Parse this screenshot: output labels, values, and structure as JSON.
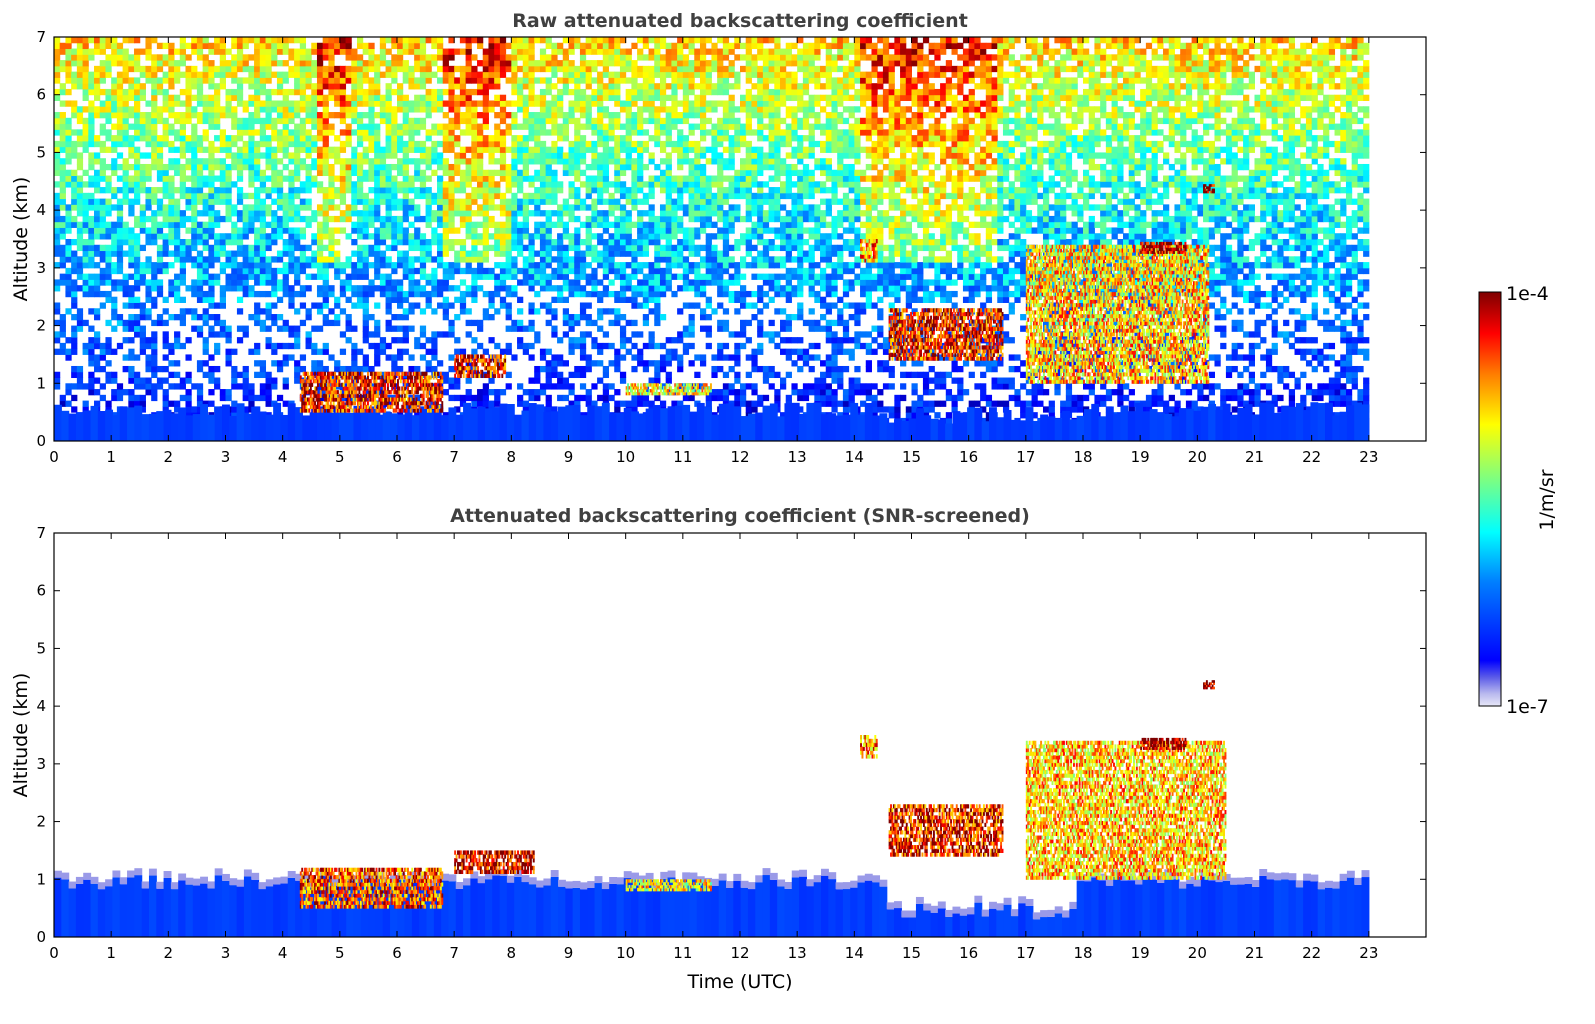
{
  "chart_data": [
    {
      "type": "heatmap",
      "title": "Raw attenuated backscattering coefficient",
      "xlabel": "",
      "ylabel": "Altitude (km)",
      "xlim": [
        0,
        24
      ],
      "ylim": [
        0,
        7
      ],
      "xticks": [
        "0",
        "1",
        "2",
        "3",
        "4",
        "5",
        "6",
        "7",
        "8",
        "9",
        "10",
        "11",
        "12",
        "13",
        "14",
        "15",
        "16",
        "17",
        "18",
        "19",
        "20",
        "21",
        "22",
        "23"
      ],
      "yticks": [
        "0",
        "1",
        "2",
        "3",
        "4",
        "5",
        "6",
        "7"
      ],
      "data_end_hour": 23,
      "screened": false,
      "features": [
        {
          "kind": "boundary_layer",
          "x": [
            0,
            23
          ],
          "top_km": 0.55,
          "level": 0.2
        },
        {
          "kind": "aerosol_layer",
          "x": [
            4.3,
            6.8
          ],
          "y": [
            0.5,
            1.2
          ],
          "level": 0.9
        },
        {
          "kind": "aerosol_layer",
          "x": [
            7.0,
            7.9
          ],
          "y": [
            1.1,
            1.5
          ],
          "level": 0.9
        },
        {
          "kind": "aerosol_layer",
          "x": [
            10.0,
            11.5
          ],
          "y": [
            0.8,
            1.0
          ],
          "level": 0.7
        },
        {
          "kind": "cloud",
          "x": [
            14.1,
            14.4
          ],
          "y": [
            3.1,
            3.5
          ],
          "level": 0.8
        },
        {
          "kind": "cloud",
          "x": [
            14.6,
            16.6
          ],
          "y": [
            1.4,
            2.3
          ],
          "level": 0.9
        },
        {
          "kind": "cloud",
          "x": [
            17.0,
            20.2
          ],
          "y": [
            1.0,
            3.4
          ],
          "level": 0.75
        },
        {
          "kind": "cloud",
          "x": [
            19.0,
            19.8
          ],
          "y": [
            3.25,
            3.45
          ],
          "level": 1.0
        },
        {
          "kind": "cloud",
          "x": [
            20.1,
            20.3
          ],
          "y": [
            4.3,
            4.45
          ],
          "level": 1.0
        }
      ]
    },
    {
      "type": "heatmap",
      "title": "Attenuated backscattering coefficient (SNR-screened)",
      "xlabel": "Time (UTC)",
      "ylabel": "Altitude (km)",
      "xlim": [
        0,
        24
      ],
      "ylim": [
        0,
        7
      ],
      "xticks": [
        "0",
        "1",
        "2",
        "3",
        "4",
        "5",
        "6",
        "7",
        "8",
        "9",
        "10",
        "11",
        "12",
        "13",
        "14",
        "15",
        "16",
        "17",
        "18",
        "19",
        "20",
        "21",
        "22",
        "23"
      ],
      "yticks": [
        "0",
        "1",
        "2",
        "3",
        "4",
        "5",
        "6",
        "7"
      ],
      "data_end_hour": 23,
      "screened": true,
      "features": [
        {
          "kind": "boundary_layer",
          "x": [
            0,
            23
          ],
          "top_km": 0.95,
          "level": 0.2
        },
        {
          "kind": "aerosol_layer",
          "x": [
            4.3,
            6.8
          ],
          "y": [
            0.5,
            1.2
          ],
          "level": 0.85
        },
        {
          "kind": "aerosol_layer",
          "x": [
            7.0,
            8.4
          ],
          "y": [
            1.1,
            1.5
          ],
          "level": 0.95
        },
        {
          "kind": "aerosol_layer",
          "x": [
            10.0,
            11.5
          ],
          "y": [
            0.8,
            1.0
          ],
          "level": 0.7
        },
        {
          "kind": "cloud",
          "x": [
            14.1,
            14.4
          ],
          "y": [
            3.1,
            3.5
          ],
          "level": 0.8
        },
        {
          "kind": "cloud",
          "x": [
            14.6,
            16.6
          ],
          "y": [
            1.4,
            2.3
          ],
          "level": 0.9
        },
        {
          "kind": "cloud",
          "x": [
            17.0,
            20.5
          ],
          "y": [
            1.0,
            3.4
          ],
          "level": 0.75
        },
        {
          "kind": "cloud",
          "x": [
            19.0,
            19.8
          ],
          "y": [
            3.25,
            3.45
          ],
          "level": 1.0
        },
        {
          "kind": "cloud",
          "x": [
            20.1,
            20.3
          ],
          "y": [
            4.3,
            4.45
          ],
          "level": 1.0
        }
      ]
    }
  ],
  "colorbar": {
    "label": "1/m/sr",
    "max_label": "1e-4",
    "min_label": "1e-7",
    "scale": "log",
    "colormap": "jet",
    "colors": [
      "#00007f",
      "#0000ff",
      "#007fff",
      "#00ffff",
      "#7fff7f",
      "#ffff00",
      "#ff7f00",
      "#ff0000",
      "#7f0000"
    ],
    "low_end_colors": [
      "#e6e6f5",
      "#b8b8ee",
      "#8a8ae8"
    ]
  }
}
